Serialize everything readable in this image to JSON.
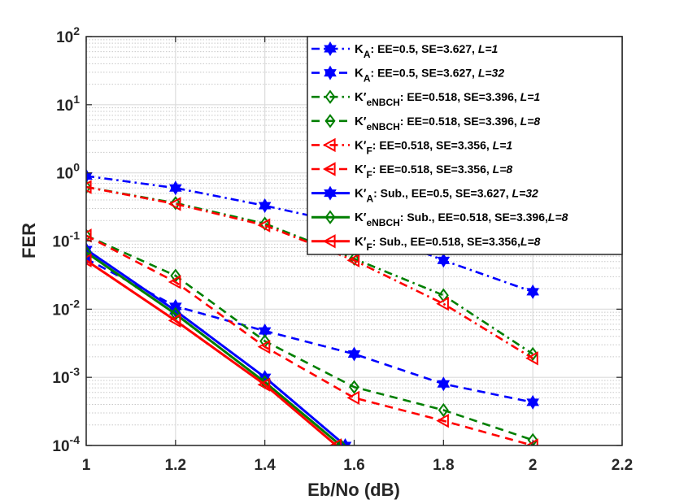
{
  "chart_data": {
    "type": "line",
    "xlabel": "Eb/No (dB)",
    "ylabel": "FER",
    "yscale": "log",
    "xlim": [
      1,
      2.2
    ],
    "ylim": [
      0.0001,
      100
    ],
    "grid": true,
    "minor_grid": true,
    "legend_position": "top-right",
    "x_ticks": [
      {
        "value": 1,
        "label": "1"
      },
      {
        "value": 1.2,
        "label": "1.2"
      },
      {
        "value": 1.4,
        "label": "1.4"
      },
      {
        "value": 1.6,
        "label": "1.6"
      },
      {
        "value": 1.8,
        "label": "1.8"
      },
      {
        "value": 2,
        "label": "2"
      },
      {
        "value": 2.2,
        "label": "2.2"
      }
    ],
    "y_ticks": [
      {
        "value": 0.0001,
        "base": "10",
        "exp": "-4"
      },
      {
        "value": 0.001,
        "base": "10",
        "exp": "-3"
      },
      {
        "value": 0.01,
        "base": "10",
        "exp": "-2"
      },
      {
        "value": 0.1,
        "base": "10",
        "exp": "-1"
      },
      {
        "value": 1,
        "base": "10",
        "exp": "0"
      },
      {
        "value": 10,
        "base": "10",
        "exp": "1"
      },
      {
        "value": 100,
        "base": "10",
        "exp": "2"
      }
    ],
    "series": [
      {
        "id": "ka-l1",
        "legend": [
          {
            "t": "K"
          },
          {
            "t": "A",
            "sub": true
          },
          {
            "t": ": EE=0.5, SE=3.627, "
          },
          {
            "t": "L=1",
            "italic": true
          }
        ],
        "color": "#0000ff",
        "dash": "dashdot",
        "marker": "hexagram",
        "x": [
          1,
          1.2,
          1.4,
          1.6,
          1.8,
          2
        ],
        "y": [
          0.9,
          0.6,
          0.33,
          0.17,
          0.052,
          0.018
        ]
      },
      {
        "id": "ka-l32",
        "legend": [
          {
            "t": "K"
          },
          {
            "t": "A",
            "sub": true
          },
          {
            "t": ": EE=0.5, SE=3.627, "
          },
          {
            "t": "L=32",
            "italic": true
          }
        ],
        "color": "#0000ff",
        "dash": "dash",
        "marker": "hexagram",
        "x": [
          1,
          1.2,
          1.4,
          1.6,
          1.8,
          2
        ],
        "y": [
          0.055,
          0.011,
          0.0048,
          0.0022,
          0.0008,
          0.00043
        ]
      },
      {
        "id": "kenbch-l1",
        "legend": [
          {
            "t": "K′"
          },
          {
            "t": "eNBCH",
            "sub": true
          },
          {
            "t": ": EE=0.518, SE=3.396, "
          },
          {
            "t": "L=1",
            "italic": true
          }
        ],
        "color": "#007f00",
        "dash": "dashdot",
        "marker": "diamond",
        "x": [
          1,
          1.2,
          1.4,
          1.6,
          1.8,
          2
        ],
        "y": [
          0.62,
          0.36,
          0.18,
          0.055,
          0.016,
          0.0022
        ]
      },
      {
        "id": "kenbch-l8",
        "legend": [
          {
            "t": "K′"
          },
          {
            "t": "eNBCH",
            "sub": true
          },
          {
            "t": ": EE=0.518, SE=3.396, "
          },
          {
            "t": "L=8",
            "italic": true
          }
        ],
        "color": "#007f00",
        "dash": "dash",
        "marker": "diamond",
        "x": [
          1,
          1.2,
          1.4,
          1.6,
          1.8,
          2
        ],
        "y": [
          0.12,
          0.031,
          0.0034,
          0.00072,
          0.00033,
          0.00012
        ]
      },
      {
        "id": "kf-l1",
        "legend": [
          {
            "t": "K′"
          },
          {
            "t": "F",
            "sub": true
          },
          {
            "t": ": EE=0.518, SE=3.356, "
          },
          {
            "t": "L=1",
            "italic": true
          }
        ],
        "color": "#ff0000",
        "dash": "dashdot",
        "marker": "triangle-left",
        "x": [
          1,
          1.2,
          1.4,
          1.6,
          1.8,
          2
        ],
        "y": [
          0.62,
          0.35,
          0.17,
          0.052,
          0.012,
          0.0019
        ]
      },
      {
        "id": "kf-l8",
        "legend": [
          {
            "t": "K′"
          },
          {
            "t": "F",
            "sub": true
          },
          {
            "t": ": EE=0.518, SE=3.356, "
          },
          {
            "t": "L=8",
            "italic": true
          }
        ],
        "color": "#ff0000",
        "dash": "dash",
        "marker": "triangle-left",
        "x": [
          1,
          1.2,
          1.4,
          1.6,
          1.8,
          2
        ],
        "y": [
          0.12,
          0.025,
          0.0028,
          0.0005,
          0.00023,
          0.0001
        ]
      },
      {
        "id": "ka-sub",
        "legend": [
          {
            "t": "K′"
          },
          {
            "t": "A",
            "sub": true
          },
          {
            "t": ": Sub., EE=0.5, SE=3.627, "
          },
          {
            "t": "L=32",
            "italic": true
          }
        ],
        "color": "#0000ff",
        "dash": "solid",
        "marker": "hexagram",
        "x": [
          1,
          1.2,
          1.4,
          1.58
        ],
        "y": [
          0.075,
          0.0095,
          0.001,
          0.0001
        ]
      },
      {
        "id": "kenbch-sub",
        "legend": [
          {
            "t": "K′"
          },
          {
            "t": "eNBCH",
            "sub": true
          },
          {
            "t": ": Sub., EE=0.518, SE=3.396,"
          },
          {
            "t": "L=8",
            "italic": true
          }
        ],
        "color": "#007f00",
        "dash": "solid",
        "marker": "diamond",
        "x": [
          1,
          1.2,
          1.4,
          1.57
        ],
        "y": [
          0.068,
          0.0085,
          0.00085,
          0.0001
        ]
      },
      {
        "id": "kf-sub",
        "legend": [
          {
            "t": "K′"
          },
          {
            "t": "F",
            "sub": true
          },
          {
            "t": ": Sub., EE=0.518, SE=3.356,"
          },
          {
            "t": "L=8",
            "italic": true
          }
        ],
        "color": "#ff0000",
        "dash": "solid",
        "marker": "triangle-left",
        "x": [
          1,
          1.2,
          1.4,
          1.56
        ],
        "y": [
          0.052,
          0.0068,
          0.00078,
          0.0001
        ]
      }
    ]
  }
}
